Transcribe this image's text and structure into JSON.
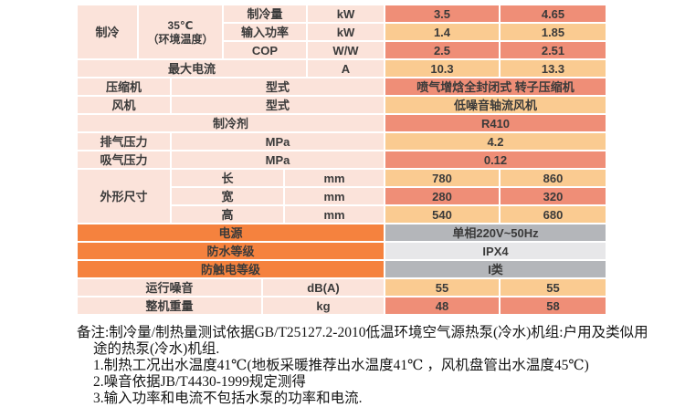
{
  "colors": {
    "label_pink": "#fbe3da",
    "value_salmon": "#ef8e77",
    "value_orange_light": "#facb91",
    "header_orange": "#f5823e",
    "value_gray": "#b4b6ba",
    "value_gray_light": "#e7e7e9",
    "text_dark": "#3a3a3a",
    "page_bg": "#ffffff"
  },
  "table": {
    "cooling": {
      "label": "制冷",
      "condition_line1": "35℃",
      "condition_line2": "（环境温度）",
      "rows": [
        {
          "param": "制冷量",
          "unit": "kW",
          "v1": "3.5",
          "v2": "4.65"
        },
        {
          "param": "输入功率",
          "unit": "kW",
          "v1": "1.4",
          "v2": "1.85"
        },
        {
          "param": "COP",
          "unit": "W/W",
          "v1": "2.5",
          "v2": "2.51"
        }
      ]
    },
    "max_current": {
      "label": "最大电流",
      "unit": "A",
      "v1": "10.3",
      "v2": "13.3"
    },
    "compressor": {
      "label": "压缩机",
      "param": "型式",
      "value": "喷气增焓全封闭式 转子压缩机"
    },
    "fan": {
      "label": "风机",
      "param": "型式",
      "value": "低噪音轴流风机"
    },
    "refrigerant": {
      "label": "制冷剂",
      "value": "R410"
    },
    "discharge_pressure": {
      "label": "排气压力",
      "unit": "MPa",
      "value": "4.2"
    },
    "suction_pressure": {
      "label": "吸气压力",
      "unit": "MPa",
      "value": "0.12"
    },
    "dimensions": {
      "label": "外形尺寸",
      "rows": [
        {
          "param": "长",
          "unit": "mm",
          "v1": "780",
          "v2": "860"
        },
        {
          "param": "宽",
          "unit": "mm",
          "v1": "280",
          "v2": "320"
        },
        {
          "param": "高",
          "unit": "mm",
          "v1": "540",
          "v2": "680"
        }
      ]
    },
    "power_supply": {
      "label": "电源",
      "value": "单相220V~50Hz"
    },
    "waterproof_rating": {
      "label": "防水等级",
      "value": "IPX4"
    },
    "shock_protection": {
      "label": "防触电等级",
      "value": "I类"
    },
    "noise": {
      "label": "运行噪音",
      "unit": "dB(A)",
      "v1": "55",
      "v2": "55"
    },
    "weight": {
      "label": "整机重量",
      "unit": "kg",
      "v1": "48",
      "v2": "58"
    }
  },
  "notes": {
    "line1": "备注:制冷量/制热量测试依据GB/T25127.2-2010低温环境空气源热泵(冷水)机组:户用及类似用",
    "line2": "途的热泵(冷水)机组.",
    "line3": "1.制热工况出水温度41℃(地板采暖推荐出水温度41℃ ，风机盘管出水温度45℃)",
    "line4": "2.噪音依据JB/T4430-1999规定测得",
    "line5": "3.输入功率和电流不包括水泵的功率和电流."
  }
}
